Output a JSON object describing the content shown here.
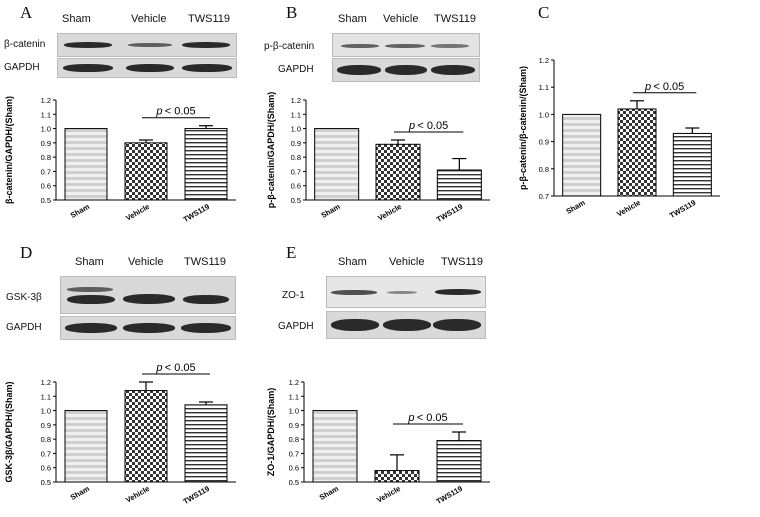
{
  "categories": [
    "Sham",
    "Vehicle",
    "TWS119"
  ],
  "significance": "p < 0.05",
  "panels": {
    "A": {
      "letter": "A",
      "blot": {
        "header": [
          "Sham",
          "Vehicle",
          "TWS119"
        ],
        "rows": [
          "β-catenin",
          "GAPDH"
        ]
      }
    },
    "B": {
      "letter": "B",
      "blot": {
        "header": [
          "Sham",
          "Vehicle",
          "TWS119"
        ],
        "rows": [
          "p-β-catenin",
          "GAPDH"
        ]
      }
    },
    "C": {
      "letter": "C"
    },
    "D": {
      "letter": "D",
      "blot": {
        "header": [
          "Sham",
          "Vehicle",
          "TWS119"
        ],
        "rows": [
          "GSK-3β",
          "GAPDH"
        ]
      }
    },
    "E": {
      "letter": "E",
      "blot": {
        "header": [
          "Sham",
          "Vehicle",
          "TWS119"
        ],
        "rows": [
          "ZO-1",
          "GAPDH"
        ]
      }
    }
  },
  "chart_data": [
    {
      "id": "A",
      "type": "bar",
      "categories": [
        "Sham",
        "Vehicle",
        "TWS119"
      ],
      "values": [
        1.0,
        0.9,
        1.0
      ],
      "errors": [
        0,
        0.02,
        0.02
      ],
      "ylabel": "β-catenin/GAPDH/(Sham)",
      "ylim": [
        0.5,
        1.2
      ],
      "yticks": [
        "0.5",
        "0.6",
        "0.7",
        "0.8",
        "0.9",
        "1.0",
        "1.1",
        "1.2"
      ],
      "annotation": "p < 0.05",
      "compare": [
        1,
        2
      ]
    },
    {
      "id": "B",
      "type": "bar",
      "categories": [
        "Sham",
        "Vehicle",
        "TWS119"
      ],
      "values": [
        1.0,
        0.89,
        0.71
      ],
      "errors": [
        0,
        0.03,
        0.08
      ],
      "ylabel": "p-β-catenin/GAPDH/(Sham)",
      "ylim": [
        0.5,
        1.2
      ],
      "yticks": [
        "0.5",
        "0.6",
        "0.7",
        "0.8",
        "0.9",
        "1.0",
        "1.1",
        "1.2"
      ],
      "annotation": "p < 0.05",
      "compare": [
        1,
        2
      ]
    },
    {
      "id": "C",
      "type": "bar",
      "categories": [
        "Sham",
        "Vehicle",
        "TWS119"
      ],
      "values": [
        1.0,
        1.02,
        0.93
      ],
      "errors": [
        0,
        0.03,
        0.02
      ],
      "ylabel": "p-β-catenin/β-catenin/(Sham)",
      "ylim": [
        0.7,
        1.2
      ],
      "yticks": [
        "0.7",
        "0.8",
        "0.9",
        "1.0",
        "1.1",
        "1.2"
      ],
      "annotation": "p < 0.05",
      "compare": [
        1,
        2
      ]
    },
    {
      "id": "D",
      "type": "bar",
      "categories": [
        "Sham",
        "Vehicle",
        "TWS119"
      ],
      "values": [
        1.0,
        1.14,
        1.04
      ],
      "errors": [
        0,
        0.06,
        0.02
      ],
      "ylabel": "GSK-3β/GAPDH/(Sham)",
      "ylim": [
        0.5,
        1.2
      ],
      "yticks": [
        "0.5",
        "0.6",
        "0.7",
        "0.8",
        "0.9",
        "1.0",
        "1.1",
        "1.2"
      ],
      "annotation": "p < 0.05",
      "compare": [
        1,
        2
      ]
    },
    {
      "id": "E",
      "type": "bar",
      "categories": [
        "Sham",
        "Vehicle",
        "TWS119"
      ],
      "values": [
        1.0,
        0.58,
        0.79
      ],
      "errors": [
        0,
        0.11,
        0.06
      ],
      "ylabel": "ZO-1/GAPDH/(Sham)",
      "ylim": [
        0.5,
        1.2
      ],
      "yticks": [
        "0.5",
        "0.6",
        "0.7",
        "0.8",
        "0.9",
        "1.0",
        "1.1",
        "1.2"
      ],
      "annotation": "p < 0.05",
      "compare": [
        1,
        2
      ]
    }
  ]
}
